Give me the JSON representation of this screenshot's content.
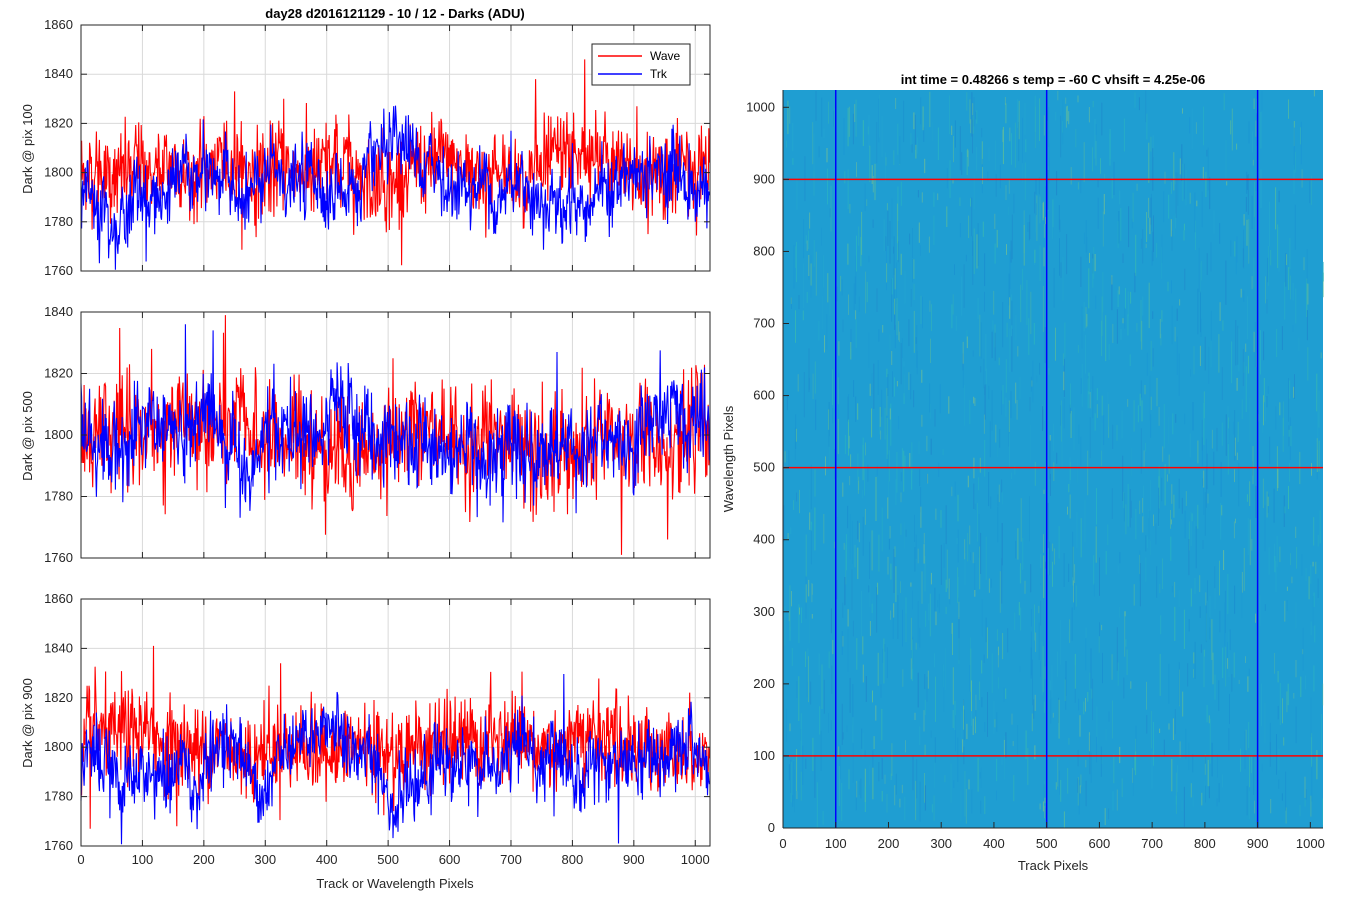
{
  "chart_data": [
    {
      "type": "line",
      "title": "day28 d2016121129 - 10 / 12 - Darks (ADU)",
      "xlabel": "",
      "ylabel": "Dark @ pix 100",
      "xlim": [
        0,
        1024
      ],
      "ylim": [
        1760,
        1860
      ],
      "xticks": [
        0,
        100,
        200,
        300,
        400,
        500,
        600,
        700,
        800,
        900,
        1000
      ],
      "yticks": [
        1760,
        1780,
        1800,
        1820,
        1840,
        1860
      ],
      "xtick_labels_visible": false,
      "grid": true,
      "legend": {
        "location": "top-right",
        "entries": [
          "Wave",
          "Trk"
        ]
      },
      "series": [
        {
          "name": "Wave",
          "color": "#ff0000",
          "mean": 1801,
          "noise": 9,
          "spikes": [
            [
              250,
              1833
            ],
            [
              330,
              1830
            ],
            [
              740,
              1838
            ],
            [
              820,
              1846
            ],
            [
              905,
              1827
            ]
          ]
        },
        {
          "name": "Trk",
          "color": "#0000ff",
          "mean": 1795,
          "noise": 7,
          "spikes": [
            [
              700,
              1817
            ],
            [
              800,
              1812
            ],
            [
              975,
              1815
            ]
          ]
        }
      ],
      "n_points": 1024
    },
    {
      "type": "line",
      "title": "",
      "xlabel": "",
      "ylabel": "Dark @ pix 500",
      "xlim": [
        0,
        1024
      ],
      "ylim": [
        1760,
        1840
      ],
      "xticks": [
        0,
        100,
        200,
        300,
        400,
        500,
        600,
        700,
        800,
        900,
        1000
      ],
      "yticks": [
        1760,
        1780,
        1800,
        1820,
        1840
      ],
      "xtick_labels_visible": false,
      "grid": true,
      "series": [
        {
          "name": "Wave",
          "color": "#ff0000",
          "mean": 1798,
          "noise": 9,
          "spikes": [
            [
              115,
              1828
            ],
            [
              235,
              1839
            ],
            [
              880,
              1761
            ],
            [
              955,
              1766
            ]
          ]
        },
        {
          "name": "Trk",
          "color": "#0000ff",
          "mean": 1799,
          "noise": 7,
          "spikes": [
            [
              170,
              1836
            ],
            [
              215,
              1834
            ],
            [
              775,
              1827
            ],
            [
              1015,
              1822
            ]
          ]
        }
      ],
      "n_points": 1024
    },
    {
      "type": "line",
      "title": "",
      "xlabel": "Track or Wavelength Pixels",
      "ylabel": "Dark @ pix 900",
      "xlim": [
        0,
        1024
      ],
      "ylim": [
        1760,
        1860
      ],
      "xticks": [
        0,
        100,
        200,
        300,
        400,
        500,
        600,
        700,
        800,
        900,
        1000
      ],
      "yticks": [
        1760,
        1780,
        1800,
        1820,
        1840,
        1860
      ],
      "xtick_labels_visible": true,
      "grid": true,
      "series": [
        {
          "name": "Wave",
          "color": "#ff0000",
          "mean": 1801,
          "noise": 9,
          "spikes": [
            [
              118,
              1841
            ],
            [
              325,
              1834
            ],
            [
              15,
              1767
            ]
          ]
        },
        {
          "name": "Trk",
          "color": "#0000ff",
          "mean": 1792,
          "noise": 7,
          "spikes": [
            [
              25,
              1814
            ],
            [
              770,
              1772
            ],
            [
              875,
              1761
            ]
          ]
        }
      ],
      "n_points": 1024
    },
    {
      "type": "heatmap",
      "title": "int time = 0.48266 s    temp = -60 C    vhsift = 4.25e-06",
      "xlabel": "Track Pixels",
      "ylabel": "Wavelength Pixels",
      "xlim": [
        0,
        1024
      ],
      "ylim": [
        0,
        1024
      ],
      "xticks": [
        0,
        100,
        200,
        300,
        400,
        500,
        600,
        700,
        800,
        900,
        1000
      ],
      "yticks": [
        0,
        100,
        200,
        300,
        400,
        500,
        600,
        700,
        800,
        900,
        1000
      ],
      "colormap": "parula",
      "base_color": "#1f9ed2",
      "vertical_lines": {
        "positions": [
          100,
          500,
          900
        ],
        "color": "#0000ff"
      },
      "horizontal_lines": {
        "positions": [
          100,
          500,
          900
        ],
        "color": "#ff0000"
      }
    }
  ]
}
